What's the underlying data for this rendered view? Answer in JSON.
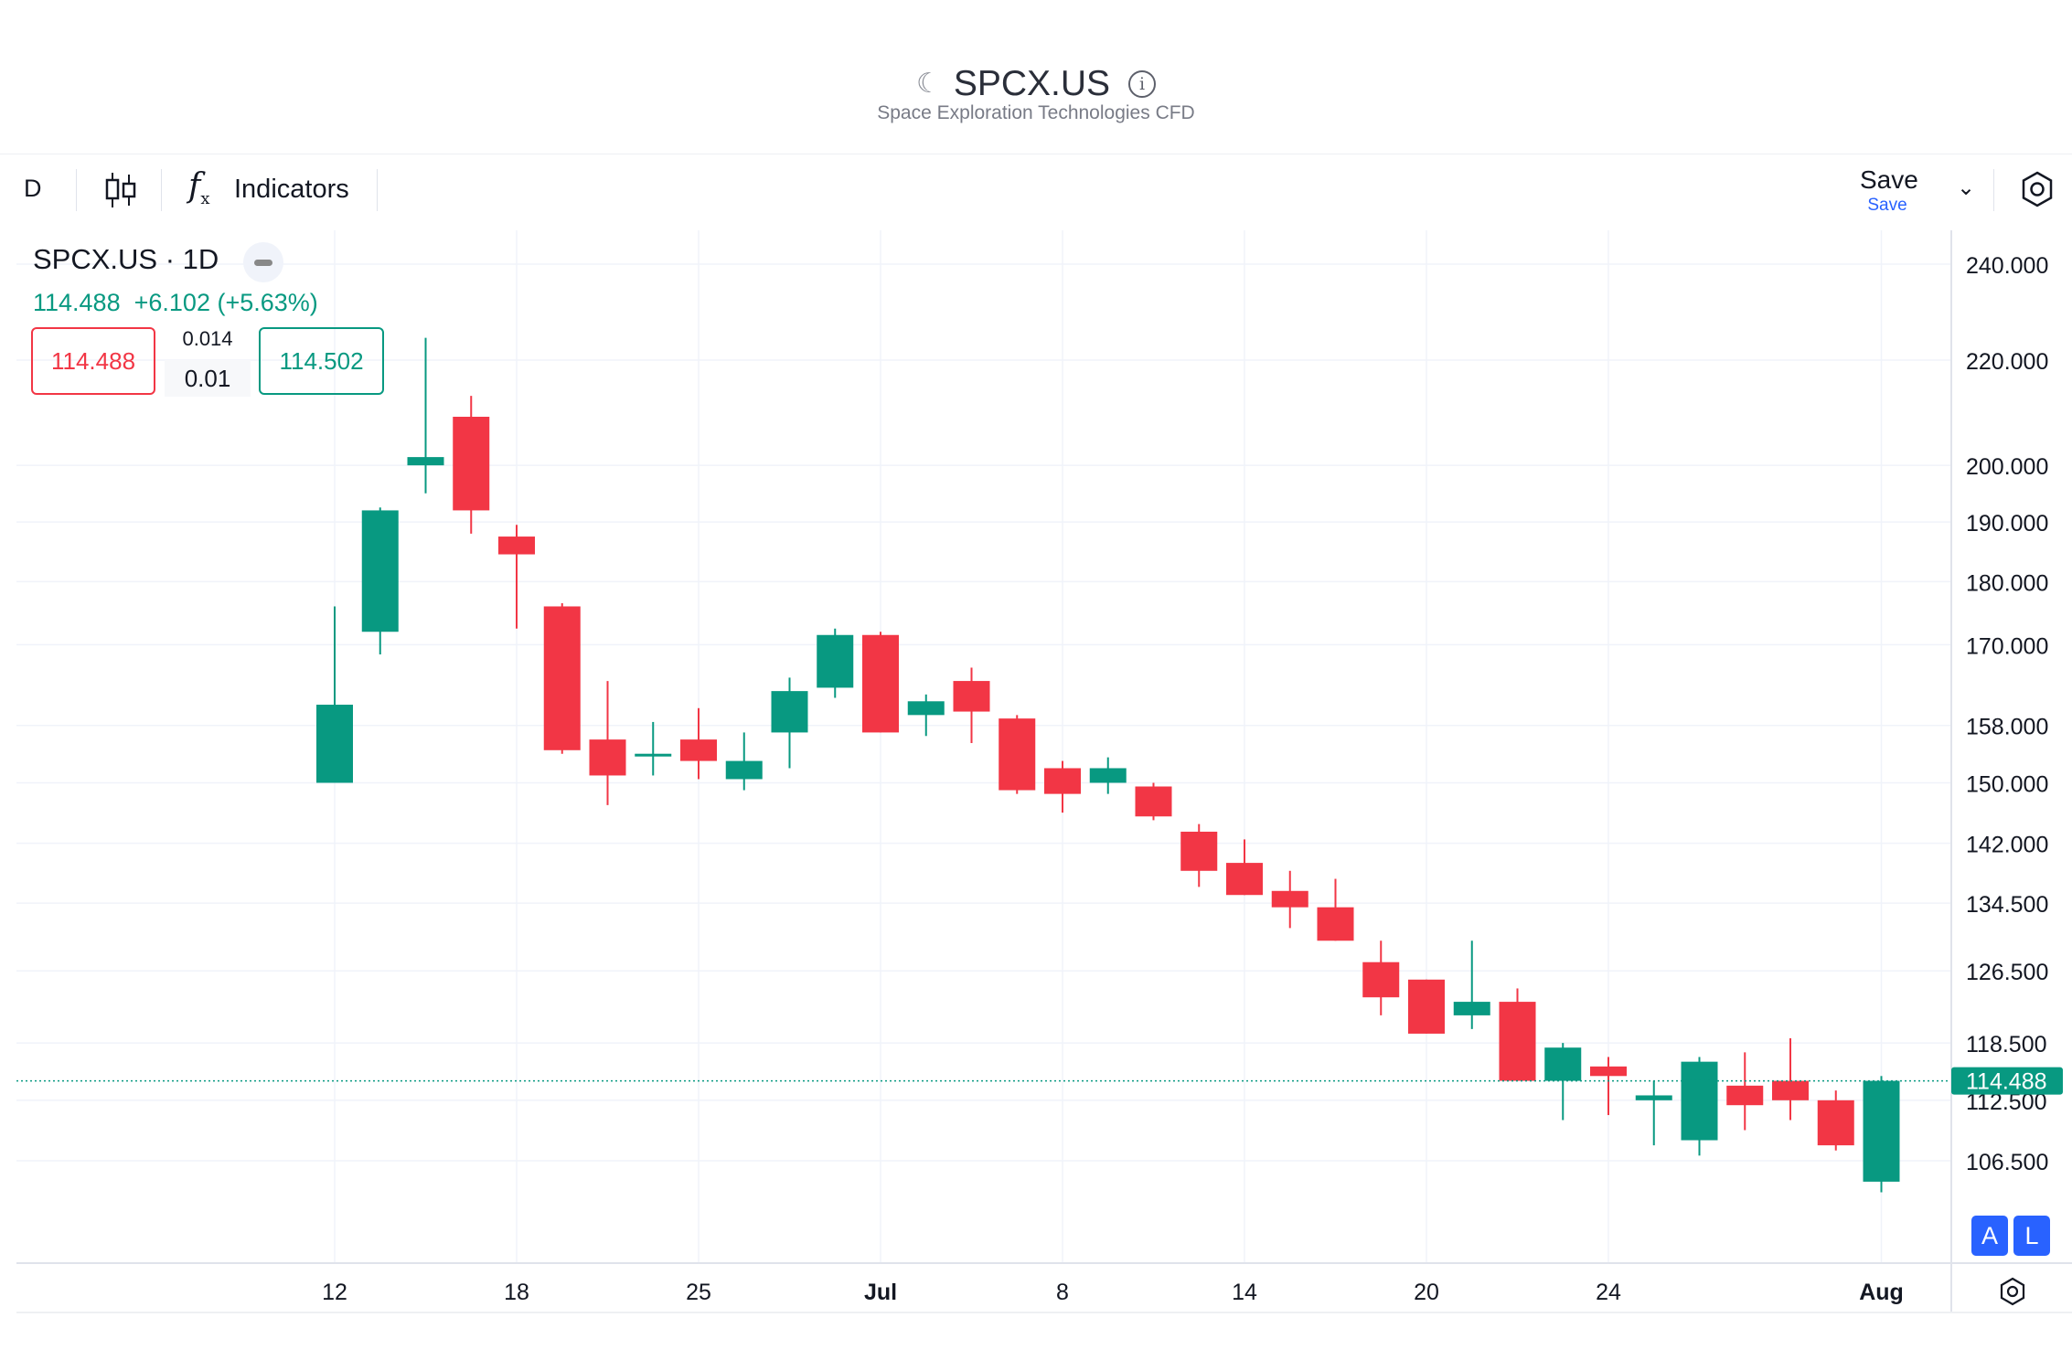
{
  "header": {
    "title": "SPCX.US",
    "subtitle": "Space Exploration Technologies CFD",
    "moon_glyph": "☾",
    "info_glyph": "i"
  },
  "toolbar": {
    "interval": "D",
    "indicators_label": "Indicators",
    "save_label": "Save",
    "save_sublabel": "Save",
    "chevron_glyph": "⌄"
  },
  "legend": {
    "symbol": "SPCX.US · 1D",
    "last": "114.488",
    "change": "+6.102 (+5.63%)",
    "bid": "114.488",
    "ask": "114.502",
    "spread_top": "0.014",
    "spread_bottom": "0.01"
  },
  "price_axis": {
    "labels": [
      "240.000",
      "220.000",
      "200.000",
      "190.000",
      "180.000",
      "170.000",
      "158.000",
      "150.000",
      "142.000",
      "134.500",
      "126.500",
      "118.500",
      "112.500",
      "106.500"
    ],
    "current_label": "114.488"
  },
  "buttons": {
    "auto": "A",
    "log": "L"
  },
  "colors": {
    "up": "#089981",
    "down": "#f23645",
    "grid": "#f0f3fa",
    "price_line": "#089981"
  },
  "chart_data": {
    "type": "candlestick",
    "title": "SPCX.US · 1D",
    "scale": "log",
    "ylim": [
      102,
      250
    ],
    "current_price": 114.488,
    "x_ticks": [
      "12",
      "18",
      "25",
      "Jul",
      "8",
      "14",
      "20",
      "24",
      "Aug"
    ],
    "x_tick_bold": [
      "Jul",
      "Aug"
    ],
    "candles": [
      {
        "o": 150.0,
        "h": 176.0,
        "l": 150.0,
        "c": 161.0
      },
      {
        "o": 172.0,
        "h": 192.5,
        "l": 168.5,
        "c": 192.0
      },
      {
        "o": 200.0,
        "h": 224.5,
        "l": 195.0,
        "c": 201.5
      },
      {
        "o": 209.0,
        "h": 213.0,
        "l": 188.0,
        "c": 192.0
      },
      {
        "o": 187.5,
        "h": 189.5,
        "l": 172.5,
        "c": 184.5
      },
      {
        "o": 176.0,
        "h": 176.5,
        "l": 154.0,
        "c": 154.5
      },
      {
        "o": 156.0,
        "h": 164.5,
        "l": 147.0,
        "c": 151.0
      },
      {
        "o": 154.0,
        "h": 158.5,
        "l": 151.0,
        "c": 154.0
      },
      {
        "o": 156.0,
        "h": 160.5,
        "l": 150.5,
        "c": 153.0
      },
      {
        "o": 150.5,
        "h": 157.0,
        "l": 149.0,
        "c": 153.0
      },
      {
        "o": 157.0,
        "h": 165.0,
        "l": 152.0,
        "c": 163.0
      },
      {
        "o": 163.5,
        "h": 172.5,
        "l": 162.0,
        "c": 171.5
      },
      {
        "o": 171.5,
        "h": 172.0,
        "l": 157.0,
        "c": 157.0
      },
      {
        "o": 159.5,
        "h": 162.5,
        "l": 156.5,
        "c": 161.5
      },
      {
        "o": 164.5,
        "h": 166.5,
        "l": 155.5,
        "c": 160.0
      },
      {
        "o": 159.0,
        "h": 159.5,
        "l": 148.5,
        "c": 149.0
      },
      {
        "o": 152.0,
        "h": 153.0,
        "l": 146.0,
        "c": 148.5
      },
      {
        "o": 150.0,
        "h": 153.5,
        "l": 148.5,
        "c": 152.0
      },
      {
        "o": 149.5,
        "h": 150.0,
        "l": 145.0,
        "c": 145.5
      },
      {
        "o": 143.5,
        "h": 144.5,
        "l": 136.5,
        "c": 138.5
      },
      {
        "o": 139.5,
        "h": 142.5,
        "l": 135.5,
        "c": 135.5
      },
      {
        "o": 136.0,
        "h": 138.5,
        "l": 131.5,
        "c": 134.0
      },
      {
        "o": 134.0,
        "h": 137.5,
        "l": 130.0,
        "c": 130.0
      },
      {
        "o": 127.5,
        "h": 130.0,
        "l": 121.5,
        "c": 123.5
      },
      {
        "o": 125.5,
        "h": 125.5,
        "l": 119.5,
        "c": 119.5
      },
      {
        "o": 121.5,
        "h": 130.0,
        "l": 120.0,
        "c": 123.0
      },
      {
        "o": 123.0,
        "h": 124.5,
        "l": 114.5,
        "c": 114.5
      },
      {
        "o": 114.5,
        "h": 118.5,
        "l": 110.5,
        "c": 118.0
      },
      {
        "o": 116.0,
        "h": 117.0,
        "l": 111.0,
        "c": 115.0
      },
      {
        "o": 112.5,
        "h": 114.5,
        "l": 108.0,
        "c": 113.0
      },
      {
        "o": 108.5,
        "h": 117.0,
        "l": 107.0,
        "c": 116.5
      },
      {
        "o": 114.0,
        "h": 117.5,
        "l": 109.5,
        "c": 112.0
      },
      {
        "o": 114.5,
        "h": 119.0,
        "l": 110.5,
        "c": 112.5
      },
      {
        "o": 112.5,
        "h": 113.5,
        "l": 107.5,
        "c": 108.0
      },
      {
        "o": 104.5,
        "h": 115.0,
        "l": 103.5,
        "c": 114.5
      }
    ]
  }
}
